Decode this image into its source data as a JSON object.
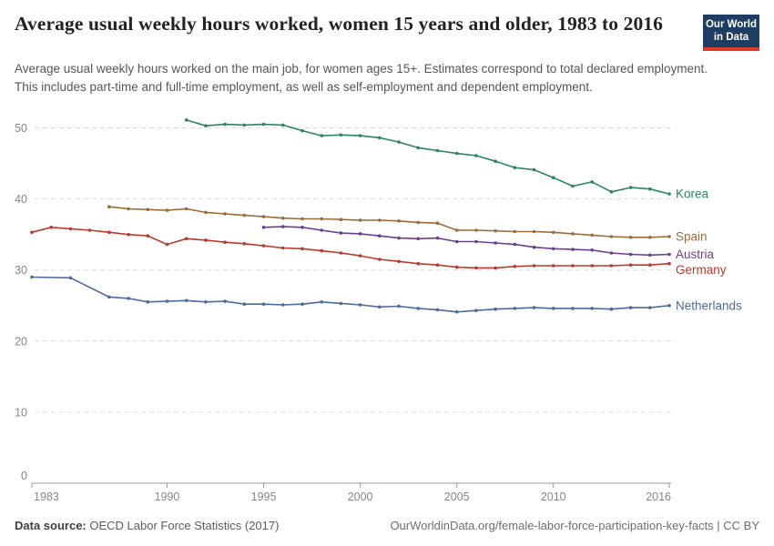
{
  "header": {
    "title": "Average usual weekly hours worked, women 15 years and older, 1983 to 2016",
    "subtitle": "Average usual weekly hours worked on the main job, for women ages 15+. Estimates correspond to total declared employment. This includes part-time and full-time employment, as well as self-employment and dependent employment.",
    "logo": {
      "line1": "Our World",
      "line2": "in Data",
      "bg": "#1d3d63",
      "stripe": "#dc3a2c"
    }
  },
  "footer": {
    "datasource_label": "Data source:",
    "datasource_value": " OECD Labor Force Statistics (2017)",
    "link": "OurWorldinData.org/female-labor-force-participation-key-facts | CC BY"
  },
  "chart_data": {
    "type": "line",
    "title": "Average usual weekly hours worked, women 15 years and older, 1983 to 2016",
    "xlabel": "",
    "ylabel": "",
    "xlim": [
      1983,
      2016
    ],
    "ylim": [
      0,
      52
    ],
    "x_ticks": [
      1983,
      1990,
      1995,
      2000,
      2005,
      2010,
      2016
    ],
    "y_ticks": [
      0,
      10,
      20,
      30,
      40,
      50
    ],
    "grid": "horizontal-dashed",
    "legend_position": "end-of-line-labels",
    "colors": {
      "grid": "#dcdcdc",
      "axis": "#9a9a9a",
      "tick_text": "#878787"
    },
    "series": [
      {
        "name": "Korea",
        "color": "#2C8465",
        "points": [
          [
            1991,
            51.1
          ],
          [
            1992,
            50.3
          ],
          [
            1993,
            50.5
          ],
          [
            1994,
            50.4
          ],
          [
            1995,
            50.5
          ],
          [
            1996,
            50.4
          ],
          [
            1997,
            49.6
          ],
          [
            1998,
            48.9
          ],
          [
            1999,
            49.0
          ],
          [
            2000,
            48.9
          ],
          [
            2001,
            48.6
          ],
          [
            2002,
            48.0
          ],
          [
            2003,
            47.2
          ],
          [
            2004,
            46.8
          ],
          [
            2005,
            46.4
          ],
          [
            2006,
            46.1
          ],
          [
            2007,
            45.3
          ],
          [
            2008,
            44.4
          ],
          [
            2009,
            44.1
          ],
          [
            2010,
            43.0
          ],
          [
            2011,
            41.8
          ],
          [
            2012,
            42.4
          ],
          [
            2013,
            41.0
          ],
          [
            2014,
            41.6
          ],
          [
            2015,
            41.4
          ],
          [
            2016,
            40.7
          ]
        ]
      },
      {
        "name": "Spain",
        "color": "#996D39",
        "points": [
          [
            1987,
            38.9
          ],
          [
            1988,
            38.6
          ],
          [
            1989,
            38.5
          ],
          [
            1990,
            38.4
          ],
          [
            1991,
            38.6
          ],
          [
            1992,
            38.1
          ],
          [
            1993,
            37.9
          ],
          [
            1994,
            37.7
          ],
          [
            1995,
            37.5
          ],
          [
            1996,
            37.3
          ],
          [
            1997,
            37.2
          ],
          [
            1998,
            37.2
          ],
          [
            1999,
            37.1
          ],
          [
            2000,
            37.0
          ],
          [
            2001,
            37.0
          ],
          [
            2002,
            36.9
          ],
          [
            2003,
            36.7
          ],
          [
            2004,
            36.6
          ],
          [
            2005,
            35.6
          ],
          [
            2006,
            35.6
          ],
          [
            2007,
            35.5
          ],
          [
            2008,
            35.4
          ],
          [
            2009,
            35.4
          ],
          [
            2010,
            35.3
          ],
          [
            2011,
            35.1
          ],
          [
            2012,
            34.9
          ],
          [
            2013,
            34.7
          ],
          [
            2014,
            34.6
          ],
          [
            2015,
            34.6
          ],
          [
            2016,
            34.7
          ]
        ]
      },
      {
        "name": "Austria",
        "color": "#6D3E91",
        "points": [
          [
            1995,
            36.0
          ],
          [
            1996,
            36.1
          ],
          [
            1997,
            36.0
          ],
          [
            1998,
            35.6
          ],
          [
            1999,
            35.2
          ],
          [
            2000,
            35.1
          ],
          [
            2001,
            34.8
          ],
          [
            2002,
            34.5
          ],
          [
            2003,
            34.4
          ],
          [
            2004,
            34.5
          ],
          [
            2005,
            34.0
          ],
          [
            2006,
            34.0
          ],
          [
            2007,
            33.8
          ],
          [
            2008,
            33.6
          ],
          [
            2009,
            33.2
          ],
          [
            2010,
            33.0
          ],
          [
            2011,
            32.9
          ],
          [
            2012,
            32.8
          ],
          [
            2013,
            32.4
          ],
          [
            2014,
            32.2
          ],
          [
            2015,
            32.1
          ],
          [
            2016,
            32.2
          ]
        ]
      },
      {
        "name": "Germany",
        "color": "#BC392F",
        "points": [
          [
            1983,
            35.3
          ],
          [
            1984,
            36.0
          ],
          [
            1985,
            35.8
          ],
          [
            1986,
            35.6
          ],
          [
            1987,
            35.3
          ],
          [
            1988,
            35.0
          ],
          [
            1989,
            34.8
          ],
          [
            1990,
            33.6
          ],
          [
            1991,
            34.4
          ],
          [
            1992,
            34.2
          ],
          [
            1993,
            33.9
          ],
          [
            1994,
            33.7
          ],
          [
            1995,
            33.4
          ],
          [
            1996,
            33.1
          ],
          [
            1997,
            33.0
          ],
          [
            1998,
            32.7
          ],
          [
            1999,
            32.4
          ],
          [
            2000,
            32.0
          ],
          [
            2001,
            31.5
          ],
          [
            2002,
            31.2
          ],
          [
            2003,
            30.9
          ],
          [
            2004,
            30.7
          ],
          [
            2005,
            30.4
          ],
          [
            2006,
            30.3
          ],
          [
            2007,
            30.3
          ],
          [
            2008,
            30.5
          ],
          [
            2009,
            30.6
          ],
          [
            2010,
            30.6
          ],
          [
            2011,
            30.6
          ],
          [
            2012,
            30.6
          ],
          [
            2013,
            30.6
          ],
          [
            2014,
            30.7
          ],
          [
            2015,
            30.7
          ],
          [
            2016,
            30.9
          ]
        ]
      },
      {
        "name": "Netherlands",
        "color": "#4C6A9C",
        "points": [
          [
            1983,
            29.0
          ],
          [
            1985,
            28.9
          ],
          [
            1987,
            26.2
          ],
          [
            1988,
            26.0
          ],
          [
            1989,
            25.5
          ],
          [
            1990,
            25.6
          ],
          [
            1991,
            25.7
          ],
          [
            1992,
            25.5
          ],
          [
            1993,
            25.6
          ],
          [
            1994,
            25.2
          ],
          [
            1995,
            25.2
          ],
          [
            1996,
            25.1
          ],
          [
            1997,
            25.2
          ],
          [
            1998,
            25.5
          ],
          [
            1999,
            25.3
          ],
          [
            2000,
            25.1
          ],
          [
            2001,
            24.8
          ],
          [
            2002,
            24.9
          ],
          [
            2003,
            24.6
          ],
          [
            2004,
            24.4
          ],
          [
            2005,
            24.1
          ],
          [
            2006,
            24.3
          ],
          [
            2007,
            24.5
          ],
          [
            2008,
            24.6
          ],
          [
            2009,
            24.7
          ],
          [
            2010,
            24.6
          ],
          [
            2011,
            24.6
          ],
          [
            2012,
            24.6
          ],
          [
            2013,
            24.5
          ],
          [
            2014,
            24.7
          ],
          [
            2015,
            24.7
          ],
          [
            2016,
            25.0
          ]
        ]
      }
    ]
  }
}
